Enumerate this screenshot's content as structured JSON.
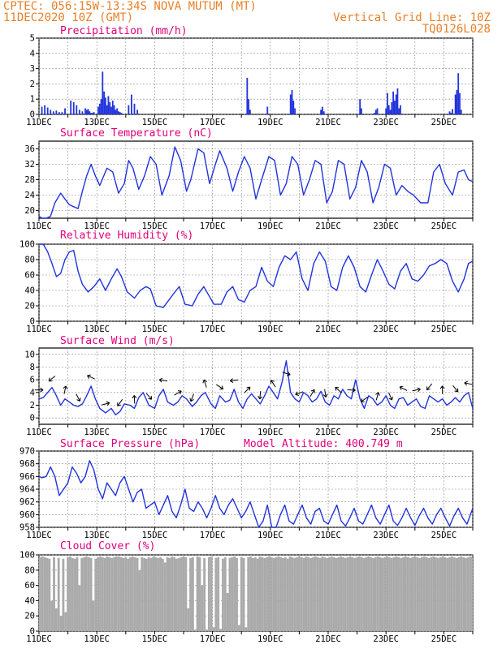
{
  "header": {
    "line1_left": "CPTEC:  056:15W-13:34S  NOVA MUTUM (MT)",
    "line2_left": "11DEC2020 10Z (GMT)",
    "line1_right": "Vertical Grid Line: 10Z",
    "line2_right": "TQ0126L028"
  },
  "colors": {
    "header": "#e8802a",
    "title": "#e0007a",
    "line": "#2233dd",
    "bar": "#2233dd",
    "cloud": "#aaaaaa",
    "arrow": "#000000"
  },
  "chart_data": [
    {
      "type": "bar",
      "title": "Precipitation (mm/h)",
      "x_labels": [
        "11DEC",
        "13DEC",
        "15DEC",
        "17DEC",
        "19DEC",
        "21DEC",
        "23DEC",
        "25DEC"
      ],
      "ylim": [
        0,
        5
      ],
      "yticks": [
        0,
        1,
        2,
        3,
        4,
        5
      ],
      "x": [
        0.1,
        0.2,
        0.3,
        0.4,
        0.5,
        0.6,
        0.7,
        0.8,
        0.9,
        1.1,
        1.2,
        1.3,
        1.4,
        1.5,
        1.6,
        1.65,
        1.7,
        1.75,
        1.8,
        1.85,
        1.9,
        2.05,
        2.1,
        2.15,
        2.2,
        2.25,
        2.3,
        2.35,
        2.4,
        2.45,
        2.5,
        2.55,
        2.6,
        2.65,
        2.7,
        2.75,
        2.8,
        2.85,
        3.1,
        3.2,
        3.3,
        3.4,
        7.2,
        7.25,
        7.3,
        7.9,
        8.7,
        8.75,
        8.8,
        8.85,
        9.75,
        9.8,
        9.85,
        11.1,
        11.15,
        11.6,
        11.65,
        11.7,
        12.0,
        12.05,
        12.1,
        12.15,
        12.2,
        12.25,
        12.3,
        12.35,
        12.4,
        12.45,
        12.5,
        14.2,
        14.25,
        14.3,
        14.4,
        14.45,
        14.5,
        14.55,
        14.6
      ],
      "values": [
        0.5,
        0.6,
        0.45,
        0.3,
        0.2,
        0.25,
        0.15,
        0.15,
        0.4,
        0.9,
        0.8,
        0.6,
        0.3,
        0.2,
        0.4,
        0.3,
        0.35,
        0.2,
        0.1,
        0.1,
        0.15,
        0.5,
        0.7,
        1.0,
        2.8,
        1.5,
        1.1,
        0.6,
        1.2,
        0.8,
        0.5,
        0.9,
        0.6,
        0.3,
        0.4,
        0.2,
        0.15,
        0.1,
        0.6,
        1.3,
        0.7,
        0.3,
        2.4,
        1.0,
        0.3,
        0.5,
        1.3,
        1.6,
        0.9,
        0.4,
        0.3,
        0.5,
        0.2,
        1.0,
        0.4,
        0.1,
        0.3,
        0.4,
        0.4,
        1.4,
        0.6,
        0.3,
        0.8,
        1.5,
        0.9,
        1.3,
        1.7,
        0.4,
        0.6,
        0.2,
        0.1,
        0.35,
        1.3,
        1.6,
        2.7,
        1.4,
        0.3
      ]
    },
    {
      "type": "line",
      "title": "Surface Temperature (nC)",
      "x_labels": [
        "11DEC",
        "13DEC",
        "15DEC",
        "17DEC",
        "19DEC",
        "21DEC",
        "23DEC",
        "25DEC"
      ],
      "ylim": [
        18,
        38
      ],
      "yticks": [
        20,
        24,
        28,
        32,
        36
      ],
      "x": [
        0,
        0.1,
        0.25,
        0.4,
        0.55,
        0.75,
        0.9,
        1.05,
        1.2,
        1.35,
        1.5,
        1.65,
        1.8,
        1.95,
        2.1,
        2.35,
        2.55,
        2.75,
        2.95,
        3.1,
        3.25,
        3.45,
        3.65,
        3.85,
        4.05,
        4.25,
        4.5,
        4.7,
        4.9,
        5.1,
        5.25,
        5.5,
        5.7,
        5.9,
        6.1,
        6.25,
        6.5,
        6.7,
        6.9,
        7.1,
        7.3,
        7.5,
        7.7,
        7.95,
        8.15,
        8.35,
        8.55,
        8.75,
        8.95,
        9.15,
        9.35,
        9.55,
        9.75,
        9.95,
        10.15,
        10.35,
        10.55,
        10.75,
        10.95,
        11.15,
        11.35,
        11.55,
        11.75,
        11.95,
        12.15,
        12.35,
        12.55,
        12.75,
        12.95,
        13.2,
        13.45,
        13.65,
        13.85,
        14.05,
        14.3,
        14.5,
        14.7,
        14.85,
        15.0
      ],
      "values": [
        18.5,
        18,
        18,
        18.5,
        22,
        24.5,
        23,
        21.5,
        21,
        20.5,
        25,
        29,
        32,
        29,
        26.5,
        31,
        30,
        24.5,
        27,
        33,
        31,
        25.5,
        29,
        34,
        32,
        24,
        29,
        36.5,
        33,
        25,
        28,
        36,
        35,
        27,
        32,
        35.5,
        31,
        25,
        30,
        34,
        31,
        23,
        28,
        34,
        33,
        24,
        27,
        34,
        32,
        24,
        28,
        33,
        32,
        22,
        25,
        33,
        32,
        23,
        26,
        33,
        30,
        22,
        26,
        32,
        31,
        24,
        26.5,
        25,
        24,
        22,
        22,
        30,
        32,
        27,
        24,
        30,
        30.5,
        28,
        27.5
      ]
    },
    {
      "type": "line",
      "title": "Relative Humidity (%)",
      "x_labels": [
        "11DEC",
        "13DEC",
        "15DEC",
        "17DEC",
        "19DEC",
        "21DEC",
        "23DEC",
        "25DEC"
      ],
      "ylim": [
        0,
        100
      ],
      "yticks": [
        0,
        20,
        40,
        60,
        80,
        100
      ],
      "x": [
        0,
        0.15,
        0.3,
        0.45,
        0.6,
        0.75,
        0.9,
        1.05,
        1.2,
        1.35,
        1.5,
        1.7,
        1.9,
        2.1,
        2.3,
        2.5,
        2.7,
        2.85,
        3.05,
        3.3,
        3.5,
        3.7,
        3.85,
        4.05,
        4.3,
        4.5,
        4.7,
        4.85,
        5.05,
        5.3,
        5.5,
        5.7,
        5.85,
        6.05,
        6.3,
        6.5,
        6.7,
        6.9,
        7.1,
        7.3,
        7.5,
        7.7,
        7.9,
        8.1,
        8.3,
        8.5,
        8.7,
        8.9,
        9.1,
        9.3,
        9.5,
        9.7,
        9.9,
        10.1,
        10.3,
        10.5,
        10.7,
        10.9,
        11.1,
        11.3,
        11.5,
        11.7,
        11.9,
        12.1,
        12.3,
        12.5,
        12.7,
        12.9,
        13.1,
        13.3,
        13.5,
        13.7,
        13.9,
        14.1,
        14.3,
        14.5,
        14.7,
        14.85,
        15.0
      ],
      "values": [
        100,
        100,
        90,
        75,
        58,
        62,
        80,
        90,
        92,
        65,
        48,
        38,
        45,
        55,
        40,
        55,
        68,
        58,
        38,
        30,
        40,
        45,
        42,
        20,
        18,
        28,
        38,
        45,
        22,
        20,
        35,
        45,
        35,
        22,
        22,
        38,
        45,
        28,
        25,
        40,
        45,
        70,
        52,
        45,
        70,
        85,
        80,
        90,
        55,
        40,
        75,
        90,
        78,
        45,
        40,
        70,
        85,
        70,
        45,
        38,
        60,
        80,
        65,
        48,
        42,
        65,
        75,
        55,
        52,
        60,
        72,
        75,
        80,
        75,
        52,
        38,
        55,
        75,
        78
      ]
    },
    {
      "type": "line",
      "title": "Surface Wind (m/s)",
      "x_labels": [
        "11DEC",
        "13DEC",
        "15DEC",
        "17DEC",
        "19DEC",
        "21DEC",
        "23DEC",
        "25DEC"
      ],
      "ylim": [
        -1,
        11
      ],
      "yticks": [
        0,
        2,
        4,
        6,
        8,
        10
      ],
      "x": [
        0,
        0.15,
        0.3,
        0.45,
        0.6,
        0.75,
        0.9,
        1.05,
        1.2,
        1.35,
        1.5,
        1.65,
        1.8,
        1.95,
        2.1,
        2.3,
        2.5,
        2.65,
        2.8,
        2.95,
        3.15,
        3.3,
        3.45,
        3.6,
        3.8,
        4.0,
        4.15,
        4.3,
        4.45,
        4.65,
        4.8,
        4.95,
        5.1,
        5.3,
        5.45,
        5.6,
        5.75,
        5.95,
        6.1,
        6.25,
        6.45,
        6.6,
        6.75,
        6.9,
        7.05,
        7.2,
        7.35,
        7.5,
        7.65,
        7.8,
        7.95,
        8.1,
        8.25,
        8.4,
        8.55,
        8.7,
        8.85,
        9.0,
        9.15,
        9.3,
        9.45,
        9.6,
        9.75,
        9.9,
        10.05,
        10.2,
        10.35,
        10.5,
        10.65,
        10.8,
        10.95,
        11.1,
        11.25,
        11.4,
        11.55,
        11.7,
        11.85,
        12.0,
        12.15,
        12.3,
        12.45,
        12.6,
        12.75,
        12.9,
        13.05,
        13.2,
        13.35,
        13.5,
        13.65,
        13.8,
        13.95,
        14.1,
        14.25,
        14.4,
        14.55,
        14.7,
        14.85,
        15.0
      ],
      "values": [
        3,
        3.2,
        4,
        4.8,
        3.5,
        2,
        3,
        2.5,
        2,
        1.8,
        2.2,
        3.5,
        5,
        3,
        1.5,
        0.8,
        1.5,
        0.5,
        1,
        2.2,
        2,
        1.5,
        3.2,
        4,
        2,
        1.5,
        3.5,
        4.5,
        2.5,
        2,
        2.5,
        3.5,
        3,
        1.8,
        2.5,
        3.5,
        4,
        2.2,
        1.5,
        3.5,
        2.5,
        2.8,
        4.5,
        2.5,
        1.5,
        3,
        3.8,
        3,
        2.2,
        3.5,
        5,
        4,
        3,
        5.5,
        9,
        4,
        3,
        2.5,
        4,
        3.5,
        2.5,
        3,
        4.2,
        2.5,
        2,
        3.5,
        3,
        4.5,
        3.5,
        3,
        6,
        3,
        1.5,
        3.5,
        3,
        2,
        2.5,
        3.5,
        2,
        1.5,
        3,
        3.2,
        2,
        2.5,
        3,
        1.8,
        1.5,
        3.5,
        3,
        2.5,
        3,
        2,
        2.5,
        3.2,
        2.5,
        3.5,
        4,
        1.5
      ]
    },
    {
      "type": "line",
      "title": "Surface Pressure (hPa)",
      "annotation": "Model Altitude: 400.749 m",
      "x_labels": [
        "11DEC",
        "13DEC",
        "15DEC",
        "17DEC",
        "19DEC",
        "21DEC",
        "23DEC",
        "25DEC"
      ],
      "ylim": [
        958,
        970
      ],
      "yticks": [
        958,
        960,
        962,
        964,
        966,
        968,
        970
      ],
      "x": [
        0,
        0.1,
        0.25,
        0.4,
        0.55,
        0.7,
        0.85,
        1.0,
        1.15,
        1.3,
        1.45,
        1.6,
        1.75,
        1.9,
        2.05,
        2.2,
        2.35,
        2.5,
        2.65,
        2.8,
        2.95,
        3.1,
        3.25,
        3.4,
        3.55,
        3.7,
        3.85,
        4.0,
        4.15,
        4.3,
        4.45,
        4.6,
        4.75,
        4.9,
        5.05,
        5.2,
        5.35,
        5.5,
        5.65,
        5.8,
        5.95,
        6.1,
        6.25,
        6.4,
        6.55,
        6.7,
        6.85,
        7.0,
        7.15,
        7.3,
        7.45,
        7.6,
        7.75,
        7.9,
        8.05,
        8.2,
        8.35,
        8.5,
        8.65,
        8.8,
        8.95,
        9.1,
        9.25,
        9.4,
        9.55,
        9.7,
        9.85,
        10.0,
        10.15,
        10.3,
        10.45,
        10.6,
        10.75,
        10.9,
        11.05,
        11.2,
        11.35,
        11.5,
        11.65,
        11.8,
        11.95,
        12.1,
        12.25,
        12.4,
        12.55,
        12.7,
        12.85,
        13.0,
        13.15,
        13.3,
        13.45,
        13.6,
        13.75,
        13.9,
        14.05,
        14.2,
        14.35,
        14.5,
        14.65,
        14.8,
        15.0
      ],
      "values": [
        966,
        965.8,
        966,
        967.5,
        966,
        963,
        964,
        965,
        967.5,
        966.5,
        965,
        966,
        968.5,
        967,
        964,
        962.5,
        965,
        964,
        963,
        965,
        966,
        964,
        962,
        963.5,
        964,
        961,
        961.5,
        962,
        960,
        961.5,
        963,
        960.5,
        959.5,
        961.5,
        964,
        961,
        960.5,
        962,
        961,
        959.5,
        961,
        963,
        961,
        960,
        961.5,
        962.5,
        961,
        959.5,
        960.5,
        962,
        960,
        958,
        959,
        961.5,
        958,
        958,
        960,
        961.5,
        959,
        958.5,
        960,
        961.5,
        959.5,
        958.5,
        960.5,
        961,
        959,
        958.5,
        960,
        961.5,
        959,
        958.2,
        959.5,
        961,
        959,
        958.5,
        960,
        961.5,
        959.5,
        958.5,
        960,
        961.5,
        959,
        958.3,
        959.5,
        961,
        959.5,
        958.3,
        959.8,
        961,
        959.5,
        958.5,
        960,
        961,
        959.5,
        958.2,
        959.8,
        961,
        959.5,
        958.5,
        961
      ]
    },
    {
      "type": "area",
      "title": "Cloud Cover (%)",
      "x_labels": [
        "11DEC",
        "13DEC",
        "15DEC",
        "17DEC",
        "19DEC",
        "21DEC",
        "23DEC",
        "25DEC"
      ],
      "ylim": [
        0,
        100
      ],
      "yticks": [
        0,
        20,
        40,
        60,
        80,
        100
      ],
      "x": [
        0,
        0.08,
        0.16,
        0.24,
        0.32,
        0.4,
        0.48,
        0.56,
        0.64,
        0.72,
        0.8,
        0.88,
        0.96,
        1.04,
        1.12,
        1.2,
        1.28,
        1.36,
        1.44,
        1.52,
        1.6,
        1.68,
        1.76,
        1.84,
        1.92,
        2.0,
        2.08,
        2.16,
        2.24,
        2.32,
        2.4,
        2.48,
        2.56,
        2.64,
        2.72,
        2.8,
        2.88,
        2.96,
        3.04,
        3.12,
        3.2,
        3.28,
        3.36,
        3.44,
        3.52,
        3.6,
        3.68,
        3.76,
        3.84,
        3.92,
        4.0,
        4.08,
        4.16,
        4.24,
        4.32,
        4.4,
        4.48,
        4.56,
        4.64,
        4.72,
        4.8,
        4.88,
        4.96,
        5.04,
        5.12,
        5.2,
        5.28,
        5.36,
        5.44,
        5.52,
        5.6,
        5.68,
        5.76,
        5.84,
        5.92,
        6.0,
        6.08,
        6.16,
        6.24,
        6.32,
        6.4,
        6.48,
        6.56,
        6.64,
        6.72,
        6.8,
        6.88,
        6.96,
        7.04,
        7.12,
        7.2,
        7.28,
        7.36,
        7.44,
        7.52,
        7.6,
        7.68,
        7.76,
        7.84,
        7.92,
        8.0,
        8.08,
        8.16,
        8.24,
        8.32,
        8.4,
        8.48,
        8.56,
        8.64,
        8.72,
        8.8,
        8.88,
        8.96,
        9.04,
        9.12,
        9.2,
        9.28,
        9.36,
        9.44,
        9.52,
        9.6,
        9.68,
        9.76,
        9.84,
        9.92,
        10.0,
        10.08,
        10.16,
        10.24,
        10.32,
        10.4,
        10.48,
        10.56,
        10.64,
        10.72,
        10.8,
        10.88,
        10.96,
        11.04,
        11.12,
        11.2,
        11.28,
        11.36,
        11.44,
        11.52,
        11.6,
        11.68,
        11.76,
        11.84,
        11.92,
        12.0,
        12.08,
        12.16,
        12.24,
        12.32,
        12.4,
        12.48,
        12.56,
        12.64,
        12.72,
        12.8,
        12.88,
        12.96,
        13.04,
        13.12,
        13.2,
        13.28,
        13.36,
        13.44,
        13.52,
        13.6,
        13.68,
        13.76,
        13.84,
        13.92,
        14.0,
        14.08,
        14.16,
        14.24,
        14.32,
        14.4,
        14.48,
        14.56,
        14.64,
        14.72,
        14.8,
        14.88,
        14.96
      ],
      "values": [
        97,
        98,
        97,
        96,
        95,
        40,
        97,
        30,
        96,
        20,
        95,
        25,
        97,
        98,
        96,
        95,
        97,
        60,
        96,
        97,
        98,
        97,
        96,
        40,
        95,
        97,
        98,
        97,
        96,
        98,
        97,
        96,
        97,
        98,
        98,
        97,
        96,
        97,
        95,
        97,
        98,
        97,
        96,
        80,
        97,
        96,
        95,
        97,
        96,
        98,
        97,
        96,
        97,
        95,
        90,
        97,
        96,
        98,
        97,
        95,
        96,
        97,
        98,
        97,
        30,
        96,
        97,
        2,
        98,
        97,
        60,
        96,
        2,
        97,
        98,
        5,
        96,
        97,
        3,
        95,
        97,
        50,
        96,
        97,
        98,
        96,
        8,
        97,
        96,
        5,
        97,
        98,
        96,
        97,
        95,
        98,
        97,
        96,
        97,
        98,
        97,
        96,
        97,
        98,
        97,
        96,
        97,
        95,
        98,
        97,
        96,
        97,
        98,
        97,
        96,
        98,
        97,
        96,
        97,
        98,
        97,
        96,
        98,
        97,
        96,
        97,
        98,
        97,
        96,
        97,
        98,
        97,
        96,
        97,
        98,
        97,
        96,
        97,
        98,
        97,
        96,
        97,
        98,
        97,
        96,
        97,
        98,
        97,
        96,
        97,
        98,
        97,
        96,
        97,
        98,
        97,
        96,
        97,
        98,
        97,
        96,
        97,
        98,
        97,
        96,
        97,
        98,
        97,
        96,
        97,
        98,
        97,
        96,
        97,
        98,
        97,
        96,
        97,
        98,
        97,
        96,
        97,
        98,
        97,
        96,
        97,
        98,
        97
      ]
    }
  ]
}
